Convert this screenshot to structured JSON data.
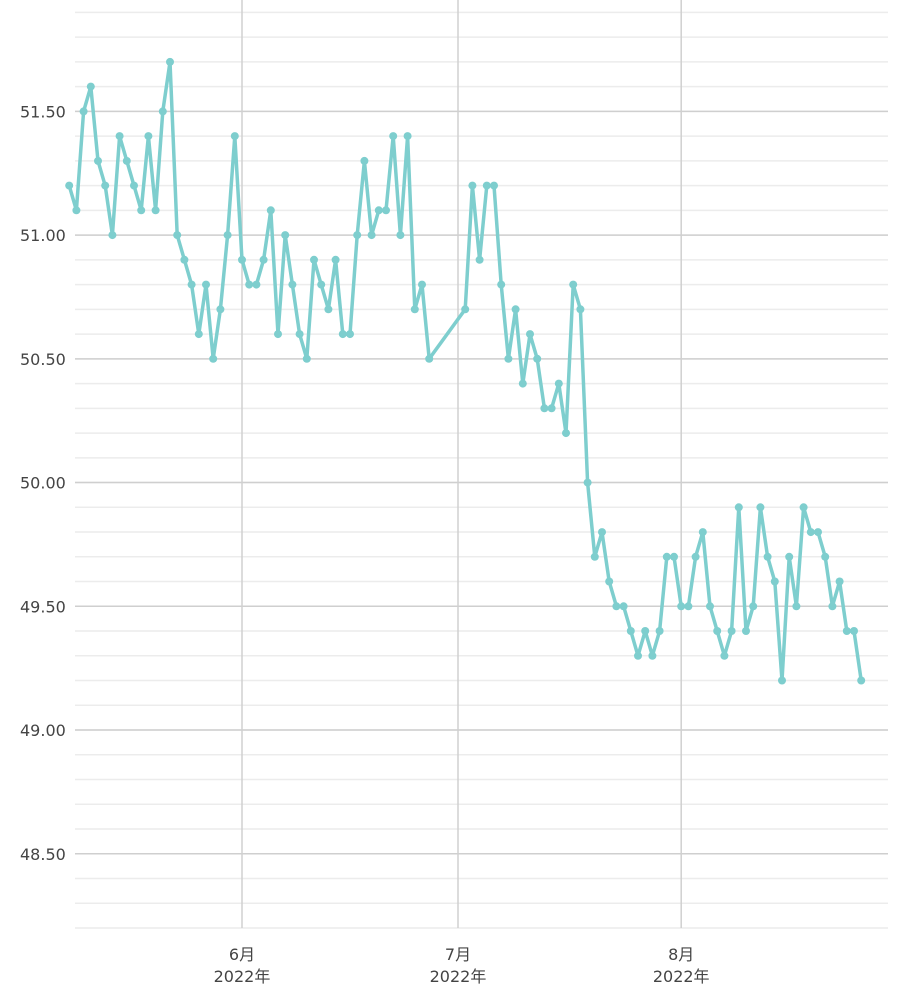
{
  "chart_data": {
    "type": "line",
    "title": "",
    "xlabel": "",
    "ylabel": "",
    "ylim": [
      48.2,
      51.95
    ],
    "y_ticks": [
      "48.50",
      "49.00",
      "49.50",
      "50.00",
      "50.50",
      "51.00",
      "51.50"
    ],
    "y_tick_values": [
      48.5,
      49.0,
      49.5,
      50.0,
      50.5,
      51.0,
      51.5
    ],
    "x_ticks": [
      {
        "month": "6月",
        "year": "2022年",
        "date": "2022-06-01"
      },
      {
        "month": "7月",
        "year": "2022年",
        "date": "2022-07-01"
      },
      {
        "month": "8月",
        "year": "2022年",
        "date": "2022-08-01"
      }
    ],
    "grid": true,
    "legend": "none",
    "series": [
      {
        "color": "#7ecece",
        "points": [
          [
            "2022-05-08",
            51.2
          ],
          [
            "2022-05-09",
            51.1
          ],
          [
            "2022-05-10",
            51.5
          ],
          [
            "2022-05-11",
            51.6
          ],
          [
            "2022-05-12",
            51.3
          ],
          [
            "2022-05-13",
            51.2
          ],
          [
            "2022-05-14",
            51.0
          ],
          [
            "2022-05-15",
            51.4
          ],
          [
            "2022-05-16",
            51.3
          ],
          [
            "2022-05-17",
            51.2
          ],
          [
            "2022-05-18",
            51.1
          ],
          [
            "2022-05-19",
            51.4
          ],
          [
            "2022-05-20",
            51.1
          ],
          [
            "2022-05-21",
            51.5
          ],
          [
            "2022-05-22",
            51.7
          ],
          [
            "2022-05-23",
            51.0
          ],
          [
            "2022-05-24",
            50.9
          ],
          [
            "2022-05-25",
            50.8
          ],
          [
            "2022-05-26",
            50.6
          ],
          [
            "2022-05-27",
            50.8
          ],
          [
            "2022-05-28",
            50.5
          ],
          [
            "2022-05-29",
            50.7
          ],
          [
            "2022-05-30",
            51.0
          ],
          [
            "2022-05-31",
            51.4
          ],
          [
            "2022-06-01",
            50.9
          ],
          [
            "2022-06-02",
            50.8
          ],
          [
            "2022-06-03",
            50.8
          ],
          [
            "2022-06-04",
            50.9
          ],
          [
            "2022-06-05",
            51.1
          ],
          [
            "2022-06-06",
            50.6
          ],
          [
            "2022-06-07",
            51.0
          ],
          [
            "2022-06-08",
            50.8
          ],
          [
            "2022-06-09",
            50.6
          ],
          [
            "2022-06-10",
            50.5
          ],
          [
            "2022-06-11",
            50.9
          ],
          [
            "2022-06-12",
            50.8
          ],
          [
            "2022-06-13",
            50.7
          ],
          [
            "2022-06-14",
            50.9
          ],
          [
            "2022-06-15",
            50.6
          ],
          [
            "2022-06-16",
            50.6
          ],
          [
            "2022-06-17",
            51.0
          ],
          [
            "2022-06-18",
            51.3
          ],
          [
            "2022-06-19",
            51.0
          ],
          [
            "2022-06-20",
            51.1
          ],
          [
            "2022-06-21",
            51.1
          ],
          [
            "2022-06-22",
            51.4
          ],
          [
            "2022-06-23",
            51.0
          ],
          [
            "2022-06-24",
            51.4
          ],
          [
            "2022-06-25",
            50.7
          ],
          [
            "2022-06-26",
            50.8
          ],
          [
            "2022-06-27",
            50.5
          ],
          [
            "2022-07-02",
            50.7
          ],
          [
            "2022-07-03",
            51.2
          ],
          [
            "2022-07-04",
            50.9
          ],
          [
            "2022-07-05",
            51.2
          ],
          [
            "2022-07-06",
            51.2
          ],
          [
            "2022-07-07",
            50.8
          ],
          [
            "2022-07-08",
            50.5
          ],
          [
            "2022-07-09",
            50.7
          ],
          [
            "2022-07-10",
            50.4
          ],
          [
            "2022-07-11",
            50.6
          ],
          [
            "2022-07-12",
            50.5
          ],
          [
            "2022-07-13",
            50.3
          ],
          [
            "2022-07-14",
            50.3
          ],
          [
            "2022-07-15",
            50.4
          ],
          [
            "2022-07-16",
            50.2
          ],
          [
            "2022-07-17",
            50.8
          ],
          [
            "2022-07-18",
            50.7
          ],
          [
            "2022-07-19",
            50.0
          ],
          [
            "2022-07-20",
            49.7
          ],
          [
            "2022-07-21",
            49.8
          ],
          [
            "2022-07-22",
            49.6
          ],
          [
            "2022-07-23",
            49.5
          ],
          [
            "2022-07-24",
            49.5
          ],
          [
            "2022-07-25",
            49.4
          ],
          [
            "2022-07-26",
            49.3
          ],
          [
            "2022-07-27",
            49.4
          ],
          [
            "2022-07-28",
            49.3
          ],
          [
            "2022-07-29",
            49.4
          ],
          [
            "2022-07-30",
            49.7
          ],
          [
            "2022-07-31",
            49.7
          ],
          [
            "2022-08-01",
            49.5
          ],
          [
            "2022-08-02",
            49.5
          ],
          [
            "2022-08-03",
            49.7
          ],
          [
            "2022-08-04",
            49.8
          ],
          [
            "2022-08-05",
            49.5
          ],
          [
            "2022-08-06",
            49.4
          ],
          [
            "2022-08-07",
            49.3
          ],
          [
            "2022-08-08",
            49.4
          ],
          [
            "2022-08-09",
            49.9
          ],
          [
            "2022-08-10",
            49.4
          ],
          [
            "2022-08-11",
            49.5
          ],
          [
            "2022-08-12",
            49.9
          ],
          [
            "2022-08-13",
            49.7
          ],
          [
            "2022-08-14",
            49.6
          ],
          [
            "2022-08-15",
            49.2
          ],
          [
            "2022-08-16",
            49.7
          ],
          [
            "2022-08-17",
            49.5
          ],
          [
            "2022-08-18",
            49.9
          ],
          [
            "2022-08-19",
            49.8
          ],
          [
            "2022-08-20",
            49.8
          ],
          [
            "2022-08-21",
            49.7
          ],
          [
            "2022-08-22",
            49.5
          ],
          [
            "2022-08-23",
            49.6
          ],
          [
            "2022-08-24",
            49.4
          ],
          [
            "2022-08-25",
            49.4
          ],
          [
            "2022-08-26",
            49.2
          ]
        ]
      }
    ]
  }
}
